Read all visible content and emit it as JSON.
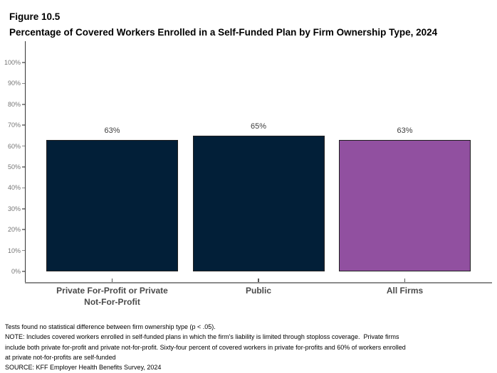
{
  "figure": {
    "label": "Figure 10.5",
    "title": "Percentage of Covered Workers Enrolled in a Self-Funded Plan by Firm Ownership Type, 2024"
  },
  "chart_data": {
    "type": "bar",
    "title": "Percentage of Covered Workers Enrolled in a Self-Funded Plan by Firm Ownership Type, 2024",
    "categories": [
      "Private For-Profit or Private\nNot-For-Profit",
      "Public",
      "All Firms"
    ],
    "values": [
      63,
      65,
      63
    ],
    "value_labels": [
      "63%",
      "65%",
      "63%"
    ],
    "bar_colors": [
      "#021F38",
      "#021F38",
      "#9150A0"
    ],
    "xlabel": "",
    "ylabel": "",
    "ylim": [
      0,
      100
    ],
    "ytick_step": 10,
    "ytick_labels": [
      "0%",
      "10%",
      "20%",
      "30%",
      "40%",
      "50%",
      "60%",
      "70%",
      "80%",
      "90%",
      "100%"
    ],
    "grid": false,
    "legend": false
  },
  "colors": {
    "navy": "#021F38",
    "purple": "#9150A0",
    "y_axis_line": "#333333",
    "x_axis_line": "#8c8c8c",
    "tick_label": "#757575",
    "category_label": "#4a4a4a",
    "value_label": "#3d3d3d",
    "bar_border": "#1f1f1f"
  },
  "footnotes": {
    "lines": [
      "Tests found no statistical difference between firm ownership type (p < .05).",
      "NOTE: Includes covered workers enrolled in self-funded plans in which the firm's liability is limited through stoploss coverage.  Private firms",
      "include both private for-profit and private not-for-profit. Sixty-four percent of covered workers in private for-profits and 60% of workers enrolled",
      "at private not-for-profits are self-funded",
      "SOURCE: KFF Employer Health Benefits Survey, 2024"
    ]
  }
}
